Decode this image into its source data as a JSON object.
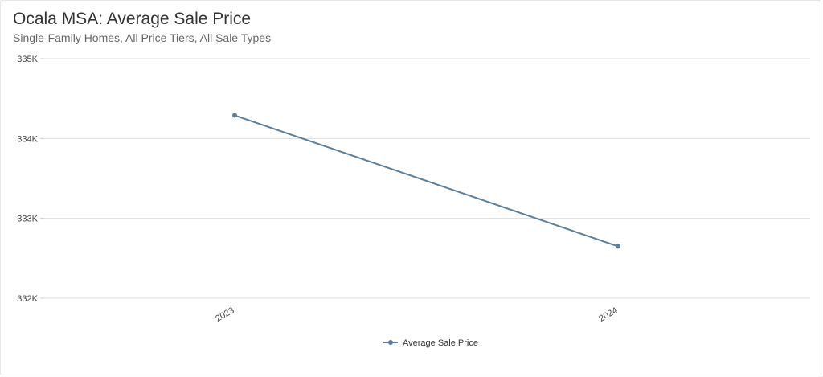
{
  "chart_data": {
    "type": "line",
    "title": "Ocala MSA: Average Sale Price",
    "subtitle": "Single-Family Homes, All Price Tiers, All Sale Types",
    "x": [
      "2023",
      "2024"
    ],
    "series": [
      {
        "name": "Average Sale Price",
        "values": [
          334290,
          332650
        ],
        "color": "#5b7f9b"
      }
    ],
    "ylim": [
      332000,
      335000
    ],
    "yticks": [
      332000,
      333000,
      334000,
      335000
    ],
    "ytick_labels": [
      "332K",
      "333K",
      "334K",
      "335K"
    ],
    "grid": true,
    "legend": "bottom-center"
  }
}
